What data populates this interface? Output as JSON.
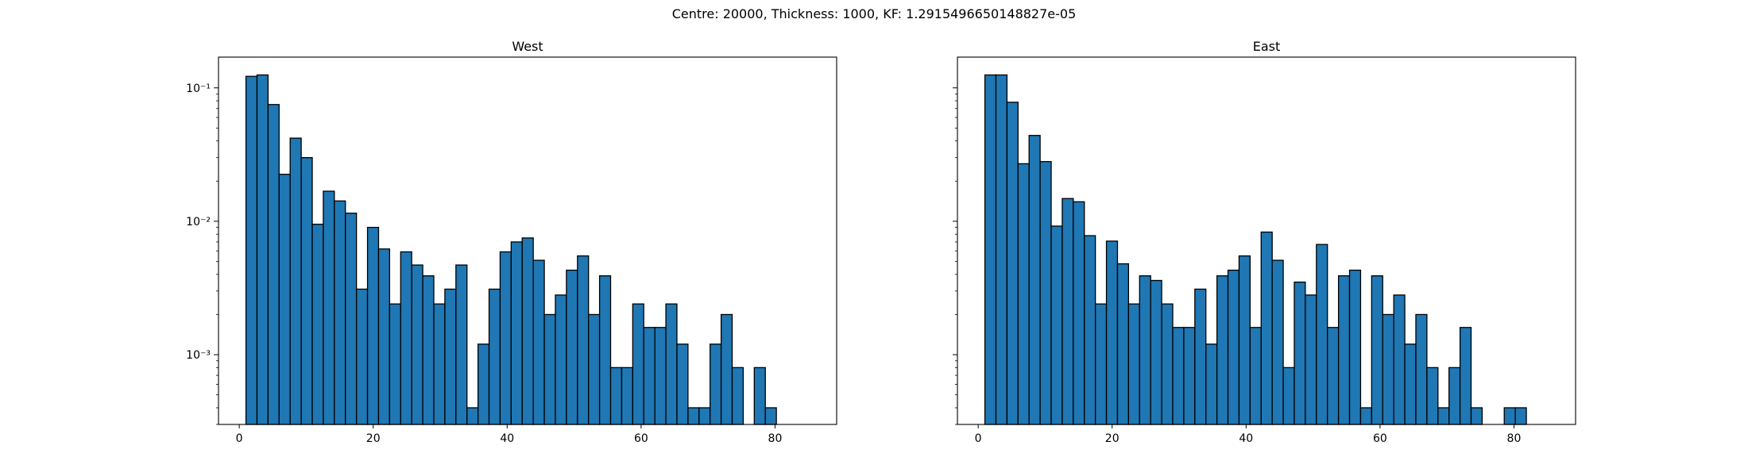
{
  "figure": {
    "suptitle": "Centre: 20000, Thickness: 1000, KF: 1.2915496650148827e-05"
  },
  "chart_data": [
    {
      "type": "bar",
      "title": "West",
      "xlabel": "",
      "ylabel": "",
      "yscale": "log",
      "xlim": [
        -3.1,
        89.2
      ],
      "ylim": [
        0.0003,
        0.17
      ],
      "bin_width": 1.65,
      "xticks": [
        0,
        20,
        40,
        60,
        80
      ],
      "yticks": [
        0.001,
        0.01,
        0.1
      ],
      "ytick_labels": [
        "10⁻³",
        "10⁻²",
        "10⁻¹"
      ],
      "bar_color": "#1f77b4",
      "edge_color": "#000000",
      "grid": false,
      "bins": [
        [
          1.0,
          0.122
        ],
        [
          2.65,
          0.125
        ],
        [
          4.3,
          0.075
        ],
        [
          5.95,
          0.0225
        ],
        [
          7.6,
          0.042
        ],
        [
          9.25,
          0.03
        ],
        [
          10.9,
          0.0095
        ],
        [
          12.55,
          0.0168
        ],
        [
          14.2,
          0.0142
        ],
        [
          15.85,
          0.0115
        ],
        [
          17.5,
          0.0031
        ],
        [
          19.15,
          0.009
        ],
        [
          20.8,
          0.0062
        ],
        [
          22.45,
          0.0024
        ],
        [
          24.1,
          0.0059
        ],
        [
          25.75,
          0.0047
        ],
        [
          27.4,
          0.0039
        ],
        [
          29.05,
          0.0024
        ],
        [
          30.7,
          0.0031
        ],
        [
          32.35,
          0.0047
        ],
        [
          34.0,
          0.0004
        ],
        [
          35.65,
          0.0012
        ],
        [
          37.3,
          0.0031
        ],
        [
          38.95,
          0.0059
        ],
        [
          40.6,
          0.007
        ],
        [
          42.25,
          0.0075
        ],
        [
          43.9,
          0.0051
        ],
        [
          45.55,
          0.002
        ],
        [
          47.2,
          0.0028
        ],
        [
          48.85,
          0.0043
        ],
        [
          50.5,
          0.0055
        ],
        [
          52.15,
          0.002
        ],
        [
          53.8,
          0.0039
        ],
        [
          55.45,
          0.0008
        ],
        [
          57.1,
          0.0008
        ],
        [
          58.75,
          0.0024
        ],
        [
          60.4,
          0.0016
        ],
        [
          62.05,
          0.0016
        ],
        [
          63.7,
          0.0024
        ],
        [
          65.35,
          0.0012
        ],
        [
          67.0,
          0.0004
        ],
        [
          68.65,
          0.0004
        ],
        [
          70.3,
          0.0012
        ],
        [
          71.95,
          0.002
        ],
        [
          73.6,
          0.0008
        ],
        [
          75.25,
          0.0
        ],
        [
          76.9,
          0.0008
        ],
        [
          78.55,
          0.0004
        ]
      ]
    },
    {
      "type": "bar",
      "title": "East",
      "xlabel": "",
      "ylabel": "",
      "yscale": "log",
      "xlim": [
        -3.1,
        89.2
      ],
      "ylim": [
        0.0003,
        0.17
      ],
      "bin_width": 1.65,
      "xticks": [
        0,
        20,
        40,
        60,
        80
      ],
      "yticks": [
        0.001,
        0.01,
        0.1
      ],
      "ytick_labels": [
        "",
        "",
        ""
      ],
      "bar_color": "#1f77b4",
      "edge_color": "#000000",
      "grid": false,
      "bins": [
        [
          1.0,
          0.125
        ],
        [
          2.65,
          0.125
        ],
        [
          4.3,
          0.078
        ],
        [
          5.95,
          0.027
        ],
        [
          7.6,
          0.044
        ],
        [
          9.25,
          0.028
        ],
        [
          10.9,
          0.0092
        ],
        [
          12.55,
          0.0148
        ],
        [
          14.2,
          0.014
        ],
        [
          15.85,
          0.0078
        ],
        [
          17.5,
          0.0024
        ],
        [
          19.15,
          0.0071
        ],
        [
          20.8,
          0.0048
        ],
        [
          22.45,
          0.0024
        ],
        [
          24.1,
          0.0039
        ],
        [
          25.75,
          0.0036
        ],
        [
          27.4,
          0.0024
        ],
        [
          29.05,
          0.0016
        ],
        [
          30.7,
          0.0016
        ],
        [
          32.35,
          0.0031
        ],
        [
          34.0,
          0.0012
        ],
        [
          35.65,
          0.0039
        ],
        [
          37.3,
          0.0043
        ],
        [
          38.95,
          0.0055
        ],
        [
          40.6,
          0.0016
        ],
        [
          42.25,
          0.0083
        ],
        [
          43.9,
          0.0051
        ],
        [
          45.55,
          0.0008
        ],
        [
          47.2,
          0.0035
        ],
        [
          48.85,
          0.0028
        ],
        [
          50.5,
          0.0067
        ],
        [
          52.15,
          0.0016
        ],
        [
          53.8,
          0.0039
        ],
        [
          55.45,
          0.0043
        ],
        [
          57.1,
          0.0004
        ],
        [
          58.75,
          0.0039
        ],
        [
          60.4,
          0.002
        ],
        [
          62.05,
          0.0028
        ],
        [
          63.7,
          0.0012
        ],
        [
          65.35,
          0.002
        ],
        [
          67.0,
          0.0008
        ],
        [
          68.65,
          0.0004
        ],
        [
          70.3,
          0.0008
        ],
        [
          71.95,
          0.0016
        ],
        [
          73.6,
          0.0004
        ],
        [
          75.25,
          0.0
        ],
        [
          76.9,
          0.0
        ],
        [
          78.55,
          0.0004
        ],
        [
          80.2,
          0.0004
        ]
      ]
    }
  ]
}
